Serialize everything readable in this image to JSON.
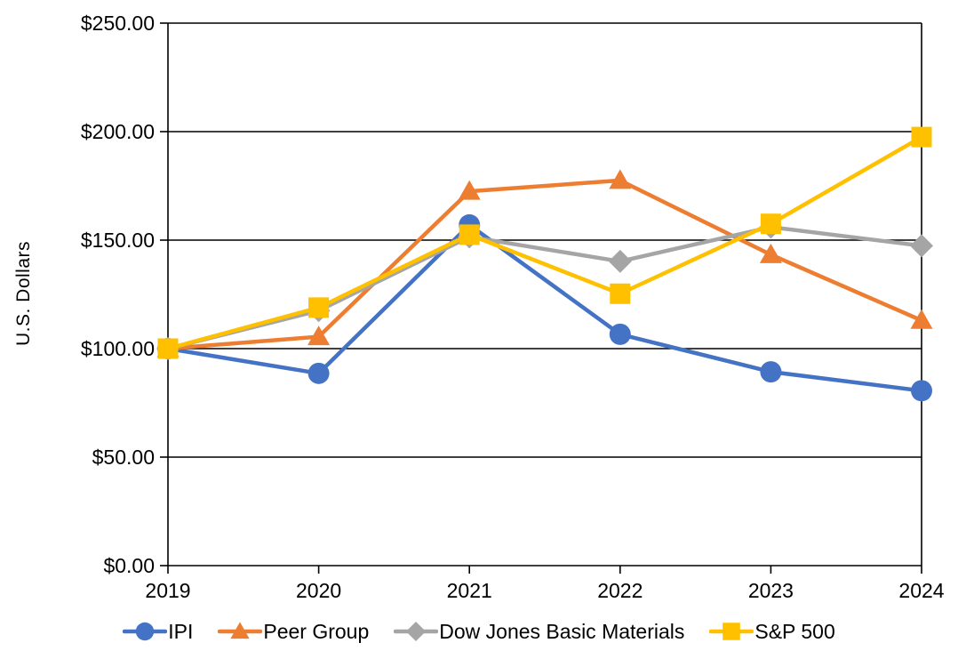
{
  "chart_data": {
    "type": "line",
    "title": "",
    "xlabel": "",
    "ylabel": "U.S. Dollars",
    "categories": [
      2019,
      2020,
      2021,
      2022,
      2023,
      2024
    ],
    "x_tick_labels": [
      "2019",
      "2020",
      "2021",
      "2022",
      "2023",
      "2024"
    ],
    "ylim": [
      0,
      250
    ],
    "y_ticks": [
      0,
      50,
      100,
      150,
      200,
      250
    ],
    "y_tick_labels": [
      "$0.00",
      "$50.00",
      "$100.00",
      "$150.00",
      "$200.00",
      "$250.00"
    ],
    "grid": "horizontal-black-gridlines",
    "legend_position": "bottom-center",
    "plot_border": true,
    "axis_color": "#000000",
    "series": [
      {
        "name": "IPI",
        "color": "#4472C4",
        "marker": "circle",
        "values": [
          100,
          88.6,
          157.0,
          106.6,
          89.3,
          80.6
        ]
      },
      {
        "name": "Peer Group",
        "color": "#ED7D31",
        "marker": "triangle",
        "values": [
          100,
          105.5,
          172.5,
          177.5,
          143.3,
          113.0
        ]
      },
      {
        "name": "Dow Jones Basic Materials",
        "color": "#A5A5A5",
        "marker": "diamond",
        "values": [
          100,
          117.5,
          151.5,
          140.2,
          156.0,
          147.4
        ]
      },
      {
        "name": "S&P 500",
        "color": "#FFC000",
        "marker": "square",
        "values": [
          100,
          118.9,
          152.5,
          125.3,
          157.5,
          197.5
        ]
      }
    ]
  }
}
